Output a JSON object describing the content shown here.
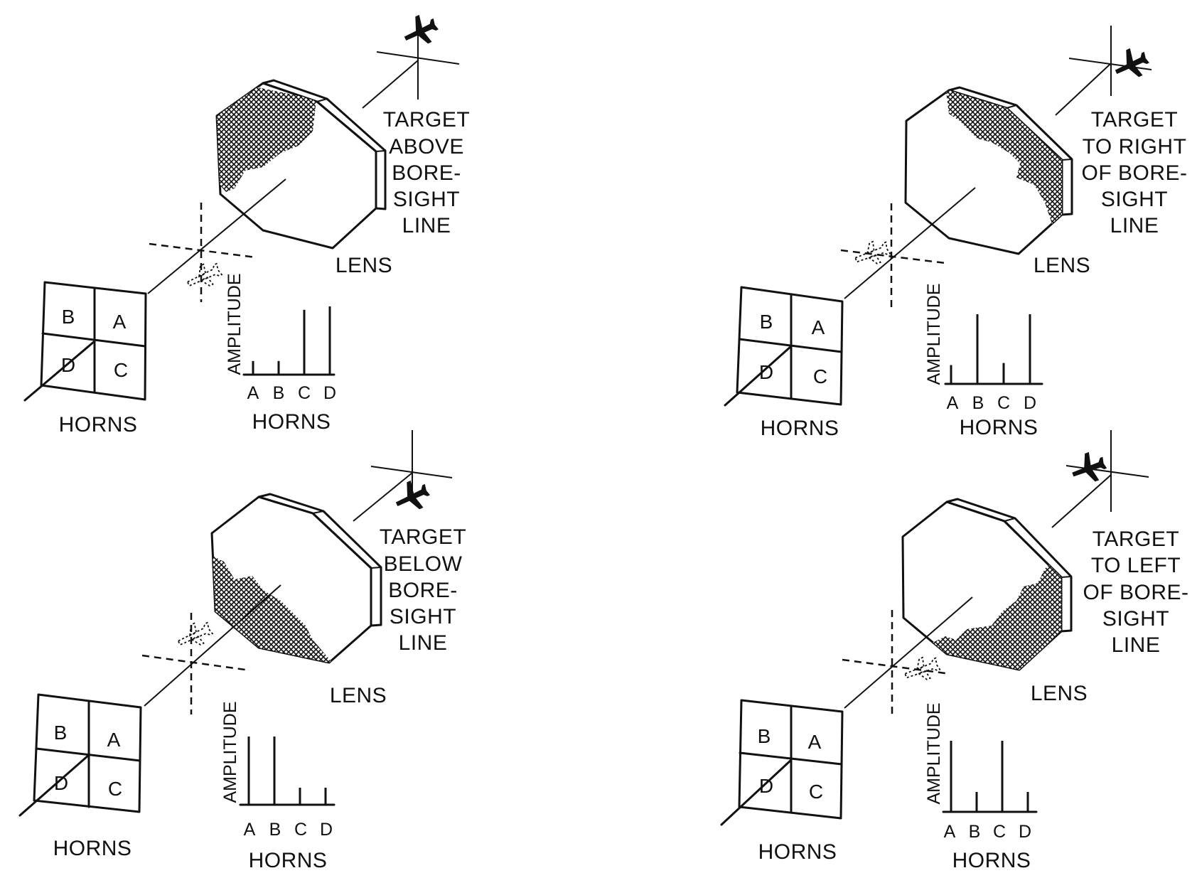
{
  "panels": [
    {
      "id": "above",
      "target_lines": [
        "TARGET",
        "ABOVE",
        "BORE-",
        "SIGHT",
        "LINE"
      ],
      "lens_label": "LENS",
      "horns_label": "HORNS",
      "horn_cells": [
        "A",
        "B",
        "C",
        "D"
      ],
      "amplitude_label": "AMPLITUDE",
      "bar_labels": [
        "A",
        "B",
        "C",
        "D"
      ],
      "bar_axis_label": "HORNS",
      "bar_values": [
        0.2,
        0.2,
        0.95,
        1.0
      ]
    },
    {
      "id": "right",
      "target_lines": [
        "TARGET",
        "TO  RIGHT",
        "OF  BORE-",
        "SIGHT",
        "LINE"
      ],
      "lens_label": "LENS",
      "horns_label": "HORNS",
      "horn_cells": [
        "A",
        "B",
        "C",
        "D"
      ],
      "amplitude_label": "AMPLITUDE",
      "bar_labels": [
        "A",
        "B",
        "C",
        "D"
      ],
      "bar_axis_label": "HORNS",
      "bar_values": [
        0.27,
        1.0,
        0.3,
        1.0
      ]
    },
    {
      "id": "below",
      "target_lines": [
        "TARGET",
        "BELOW",
        "BORE-",
        "SIGHT",
        "LINE"
      ],
      "lens_label": "LENS",
      "horns_label": "HORNS",
      "horn_cells": [
        "A",
        "B",
        "C",
        "D"
      ],
      "amplitude_label": "AMPLITUDE",
      "bar_labels": [
        "A",
        "B",
        "C",
        "D"
      ],
      "bar_axis_label": "HORNS",
      "bar_values": [
        1.0,
        1.0,
        0.25,
        0.25
      ]
    },
    {
      "id": "left",
      "target_lines": [
        "TARGET",
        "TO  LEFT",
        "OF  BORE-",
        "SIGHT",
        "LINE"
      ],
      "lens_label": "LENS",
      "horns_label": "HORNS",
      "horn_cells": [
        "A",
        "B",
        "C",
        "D"
      ],
      "amplitude_label": "AMPLITUDE",
      "bar_labels": [
        "A",
        "B",
        "C",
        "D"
      ],
      "bar_axis_label": "HORNS",
      "bar_values": [
        1.0,
        0.28,
        1.0,
        0.28
      ]
    }
  ]
}
